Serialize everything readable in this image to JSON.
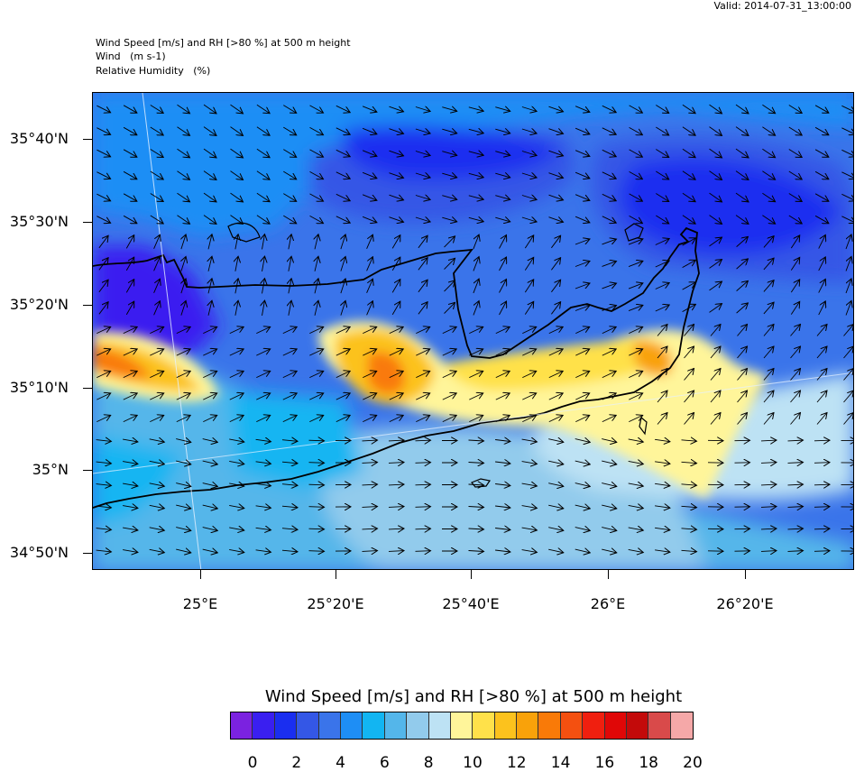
{
  "valid_time": "Valid: 2014-07-31_13:00:00",
  "header": {
    "line1": "Wind Speed [m/s] and RH [>80 %] at 500 m height",
    "line2": "Wind   (m s-1)",
    "line3": "Relative Humidity   (%)"
  },
  "axes": {
    "lat_labels": [
      "35°40'N",
      "35°30'N",
      "35°20'N",
      "35°10'N",
      "35°N",
      "34°50'N"
    ],
    "lon_labels": [
      "25°E",
      "25°20'E",
      "25°40'E",
      "26°E",
      "26°20'E"
    ]
  },
  "colorbar": {
    "title": "Wind Speed [m/s] and RH [>80 %] at 500 m height",
    "tick_labels": [
      "0",
      "2",
      "4",
      "6",
      "8",
      "10",
      "12",
      "14",
      "16",
      "18",
      "20"
    ],
    "colors": [
      "#7b22e0",
      "#3a1ff0",
      "#1a2ef0",
      "#3457e6",
      "#3a74ea",
      "#1e8ef5",
      "#12b5f2",
      "#54b6ea",
      "#92cbec",
      "#bde2f4",
      "#fff59a",
      "#ffe14a",
      "#fcc21d",
      "#f9a20a",
      "#f97a08",
      "#f45010",
      "#f01f0f",
      "#e00707",
      "#c30a0a",
      "#d94a4a",
      "#f5a8a8"
    ]
  }
}
